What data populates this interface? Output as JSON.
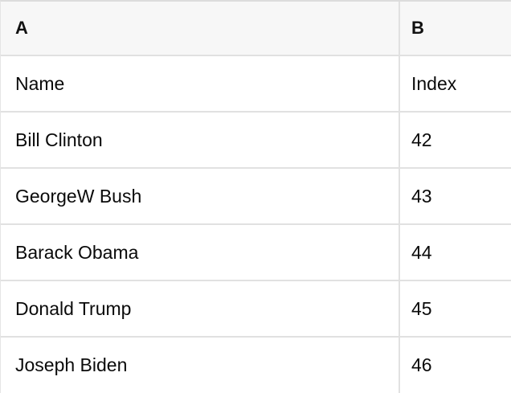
{
  "colors": {
    "header_bg": "#f7f7f7",
    "grid_border": "#e1e1e1",
    "text": "#0a0a0a"
  },
  "table": {
    "column_headers": [
      {
        "label": "A"
      },
      {
        "label": "B"
      }
    ],
    "rows": [
      {
        "name": "Name",
        "index": "Index"
      },
      {
        "name": "Bill Clinton",
        "index": "42"
      },
      {
        "name": "GeorgeW Bush",
        "index": "43"
      },
      {
        "name": "Barack Obama",
        "index": "44"
      },
      {
        "name": "Donald Trump",
        "index": "45"
      },
      {
        "name": "Joseph Biden",
        "index": "46"
      }
    ]
  }
}
